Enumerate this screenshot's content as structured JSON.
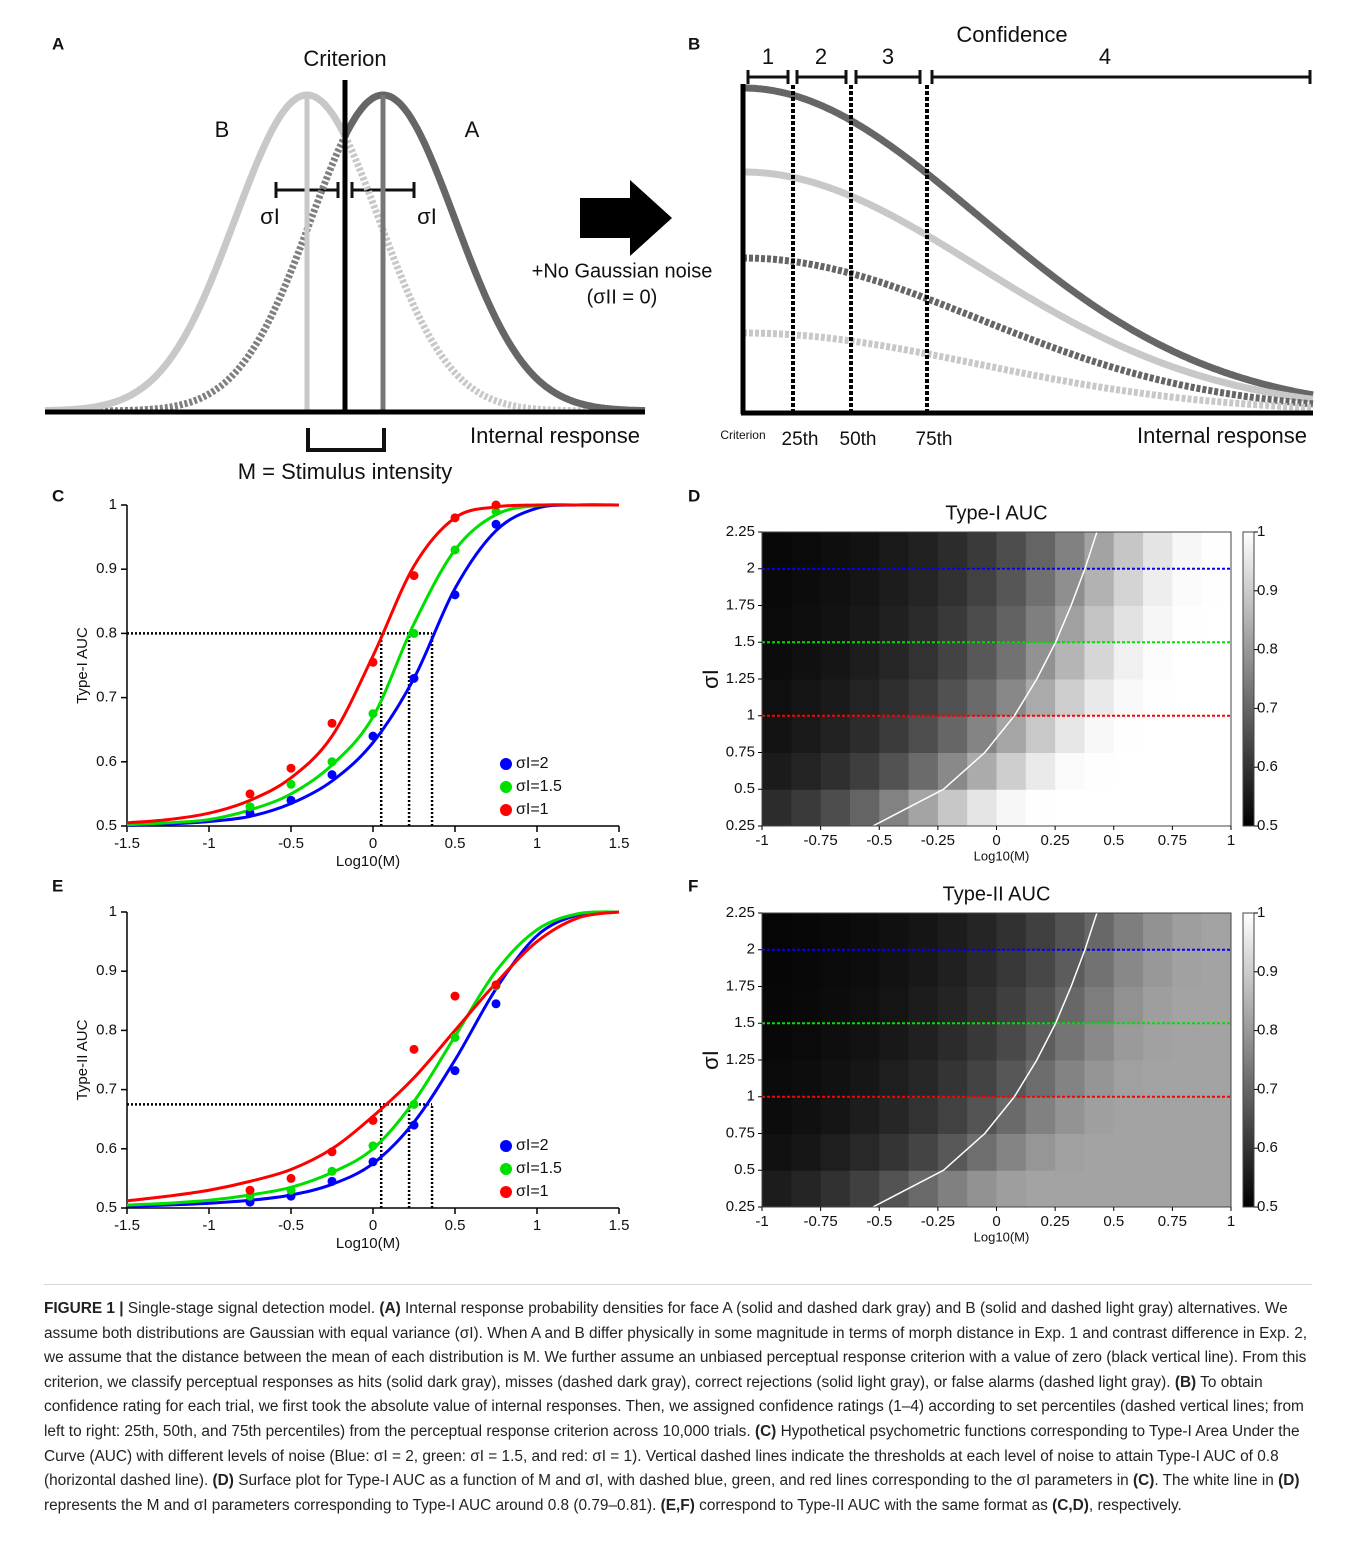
{
  "diagram_a": {
    "label": "A",
    "criterion": "Criterion",
    "dist_b": "B",
    "dist_a": "A",
    "sigma_left": "σI",
    "sigma_right": "σI",
    "axis": "Internal response",
    "m": "M = Stimulus intensity"
  },
  "arrow": {
    "line1": "+No Gaussian noise",
    "line2": "(σII = 0)"
  },
  "diagram_b": {
    "label": "B",
    "title": "Confidence",
    "levels": [
      "1",
      "2",
      "3",
      "4"
    ],
    "criterion": "Criterion",
    "percentiles": [
      "25th",
      "50th",
      "75th"
    ],
    "axis": "Internal response"
  },
  "chart_data": [
    {
      "type": "line",
      "label": "C",
      "xlabel": "Log10(M)",
      "ylabel": "Type-I AUC",
      "x": [
        -1.5,
        -1.25,
        -1,
        -0.75,
        -0.5,
        -0.25,
        0,
        0.25,
        0.5,
        0.75,
        1,
        1.25,
        1.5
      ],
      "point_x": [
        -0.75,
        -0.5,
        -0.25,
        0,
        0.25,
        0.5,
        0.75
      ],
      "series": [
        {
          "name": "σI=2",
          "color": "#0000ff",
          "values": [
            0.501,
            0.503,
            0.507,
            0.515,
            0.535,
            0.57,
            0.63,
            0.73,
            0.87,
            0.96,
            0.995,
            1,
            1
          ],
          "points": [
            0.52,
            0.54,
            0.58,
            0.64,
            0.73,
            0.86,
            0.97
          ]
        },
        {
          "name": "σI=1.5",
          "color": "#00e000",
          "values": [
            0.502,
            0.505,
            0.51,
            0.525,
            0.55,
            0.595,
            0.67,
            0.815,
            0.93,
            0.985,
            0.999,
            1,
            1
          ],
          "points": [
            0.53,
            0.565,
            0.6,
            0.675,
            0.8,
            0.93,
            0.99
          ]
        },
        {
          "name": "σI=1",
          "color": "#ff0000",
          "values": [
            0.505,
            0.51,
            0.52,
            0.54,
            0.575,
            0.64,
            0.765,
            0.905,
            0.98,
            0.997,
            1,
            1,
            1
          ],
          "points": [
            0.55,
            0.59,
            0.66,
            0.755,
            0.89,
            0.98,
            1
          ]
        }
      ],
      "threshold": {
        "y": 0.8,
        "x": [
          0.05,
          0.22,
          0.36
        ]
      },
      "xlim": [
        -1.5,
        1.5
      ],
      "xticks": [
        -1.5,
        -1,
        -0.5,
        0,
        0.5,
        1,
        1.5
      ],
      "ylim": [
        0.5,
        1
      ],
      "yticks": [
        0.5,
        0.6,
        0.7,
        0.8,
        0.9,
        1
      ]
    },
    {
      "type": "heatmap",
      "label": "D",
      "title": "Type-I AUC",
      "xlabel": "Log10(M)",
      "ylabel": "σI",
      "x": [
        -0.9375,
        -0.8125,
        -0.6875,
        -0.5625,
        -0.4375,
        -0.3125,
        -0.1875,
        -0.0625,
        0.0625,
        0.1875,
        0.3125,
        0.4375,
        0.5625,
        0.6875,
        0.8125,
        0.9375
      ],
      "y": [
        0.375,
        0.625,
        0.875,
        1.125,
        1.375,
        1.625,
        1.875,
        2.125
      ],
      "values": [
        [
          0.586,
          0.614,
          0.651,
          0.697,
          0.755,
          0.821,
          0.89,
          0.949,
          0.985,
          0.998,
          1,
          1,
          1,
          1,
          1,
          1
        ],
        [
          0.552,
          0.569,
          0.592,
          0.622,
          0.66,
          0.709,
          0.769,
          0.836,
          0.904,
          0.959,
          0.99,
          0.999,
          1,
          1,
          1,
          1
        ],
        [
          0.537,
          0.549,
          0.566,
          0.587,
          0.616,
          0.653,
          0.7,
          0.758,
          0.824,
          0.893,
          0.951,
          0.987,
          0.998,
          1,
          1,
          1
        ],
        [
          0.529,
          0.539,
          0.551,
          0.568,
          0.591,
          0.62,
          0.658,
          0.707,
          0.766,
          0.834,
          0.902,
          0.957,
          0.989,
          0.999,
          1,
          1
        ],
        [
          0.524,
          0.532,
          0.542,
          0.556,
          0.575,
          0.599,
          0.631,
          0.672,
          0.724,
          0.786,
          0.854,
          0.92,
          0.97,
          0.994,
          1,
          1
        ],
        [
          0.52,
          0.527,
          0.536,
          0.547,
          0.563,
          0.584,
          0.611,
          0.647,
          0.692,
          0.749,
          0.814,
          0.883,
          0.944,
          0.983,
          0.998,
          1
        ],
        [
          0.518,
          0.523,
          0.531,
          0.541,
          0.555,
          0.573,
          0.597,
          0.628,
          0.669,
          0.719,
          0.781,
          0.849,
          0.916,
          0.967,
          0.993,
          0.999
        ],
        [
          0.515,
          0.52,
          0.527,
          0.536,
          0.549,
          0.564,
          0.586,
          0.613,
          0.65,
          0.696,
          0.753,
          0.819,
          0.888,
          0.947,
          0.985,
          0.998
        ]
      ],
      "contour": {
        "x": [
          -0.527,
          -0.226,
          -0.05,
          0.076,
          0.172,
          0.252,
          0.318,
          0.377,
          0.428
        ],
        "y": [
          0.25,
          0.5,
          0.75,
          1,
          1.25,
          1.5,
          1.75,
          2,
          2.25
        ]
      },
      "hlines": [
        {
          "value": 2,
          "color": "#0000ff"
        },
        {
          "value": 1.5,
          "color": "#00e000"
        },
        {
          "value": 1,
          "color": "#ff0000"
        }
      ],
      "xlim": [
        -1,
        1
      ],
      "xticks": [
        -1,
        -0.75,
        -0.5,
        -0.25,
        0,
        0.25,
        0.5,
        0.75,
        1
      ],
      "ylim": [
        0.25,
        2.25
      ],
      "yticks": [
        0.25,
        0.5,
        0.75,
        1,
        1.25,
        1.5,
        1.75,
        2,
        2.25
      ],
      "colorbar": {
        "lim": [
          0.5,
          1
        ],
        "ticks": [
          0.5,
          0.6,
          0.7,
          0.8,
          0.9,
          1
        ]
      }
    },
    {
      "type": "line",
      "label": "E",
      "xlabel": "Log10(M)",
      "ylabel": "Type-II AUC",
      "x": [
        -1.5,
        -1.25,
        -1,
        -0.75,
        -0.5,
        -0.25,
        0,
        0.25,
        0.5,
        0.75,
        1,
        1.25,
        1.5
      ],
      "point_x": [
        -0.75,
        -0.5,
        -0.25,
        0,
        0.25,
        0.5,
        0.75
      ],
      "series": [
        {
          "name": "σI=2",
          "color": "#0000ff",
          "values": [
            0.503,
            0.505,
            0.508,
            0.513,
            0.522,
            0.54,
            0.575,
            0.645,
            0.75,
            0.87,
            0.96,
            0.995,
            1
          ],
          "points": [
            0.51,
            0.52,
            0.545,
            0.578,
            0.64,
            0.732,
            0.845
          ]
        },
        {
          "name": "σI=1.5",
          "color": "#00e000",
          "values": [
            0.505,
            0.508,
            0.513,
            0.522,
            0.535,
            0.56,
            0.6,
            0.68,
            0.79,
            0.9,
            0.97,
            0.997,
            1
          ],
          "points": [
            0.52,
            0.53,
            0.562,
            0.605,
            0.675,
            0.788,
            0.875
          ]
        },
        {
          "name": "σI=1",
          "color": "#ff0000",
          "values": [
            0.512,
            0.52,
            0.53,
            0.545,
            0.565,
            0.6,
            0.655,
            0.72,
            0.8,
            0.88,
            0.95,
            0.99,
            1
          ],
          "points": [
            0.53,
            0.55,
            0.595,
            0.648,
            0.768,
            0.858,
            0.877
          ]
        }
      ],
      "threshold": {
        "y": 0.675,
        "x": [
          0.05,
          0.22,
          0.36
        ]
      },
      "xlim": [
        -1.5,
        1.5
      ],
      "xticks": [
        -1.5,
        -1,
        -0.5,
        0,
        0.5,
        1,
        1.5
      ],
      "ylim": [
        0.5,
        1
      ],
      "yticks": [
        0.5,
        0.6,
        0.7,
        0.8,
        0.9,
        1
      ]
    },
    {
      "type": "heatmap",
      "label": "F",
      "title": "Type-II AUC",
      "xlabel": "Log10(M)",
      "ylabel": "σI",
      "x": [
        -0.9375,
        -0.8125,
        -0.6875,
        -0.5625,
        -0.4375,
        -0.3125,
        -0.1875,
        -0.0625,
        0.0625,
        0.1875,
        0.3125,
        0.4375,
        0.5625,
        0.6875,
        0.8125,
        0.9375
      ],
      "y": [
        0.375,
        0.625,
        0.875,
        1.125,
        1.375,
        1.625,
        1.875,
        2.125
      ],
      "values": [
        [
          0.555,
          0.573,
          0.597,
          0.626,
          0.663,
          0.705,
          0.75,
          0.787,
          0.81,
          0.819,
          0.82,
          0.82,
          0.82,
          0.82,
          0.82,
          0.82
        ],
        [
          0.533,
          0.544,
          0.559,
          0.578,
          0.602,
          0.634,
          0.672,
          0.715,
          0.759,
          0.794,
          0.814,
          0.819,
          0.82,
          0.82,
          0.82,
          0.82
        ],
        [
          0.524,
          0.531,
          0.542,
          0.556,
          0.574,
          0.598,
          0.628,
          0.665,
          0.707,
          0.752,
          0.789,
          0.812,
          0.819,
          0.82,
          0.82,
          0.82
        ],
        [
          0.519,
          0.525,
          0.533,
          0.544,
          0.558,
          0.577,
          0.601,
          0.632,
          0.67,
          0.714,
          0.757,
          0.792,
          0.813,
          0.819,
          0.82,
          0.82
        ],
        [
          0.515,
          0.52,
          0.527,
          0.536,
          0.548,
          0.563,
          0.584,
          0.61,
          0.643,
          0.683,
          0.727,
          0.769,
          0.801,
          0.816,
          0.82,
          0.82
        ],
        [
          0.513,
          0.517,
          0.523,
          0.53,
          0.54,
          0.554,
          0.571,
          0.594,
          0.623,
          0.659,
          0.701,
          0.745,
          0.784,
          0.809,
          0.819,
          0.82
        ],
        [
          0.512,
          0.515,
          0.52,
          0.526,
          0.535,
          0.547,
          0.562,
          0.582,
          0.608,
          0.64,
          0.68,
          0.723,
          0.766,
          0.799,
          0.816,
          0.819
        ],
        [
          0.51,
          0.513,
          0.517,
          0.523,
          0.531,
          0.541,
          0.555,
          0.572,
          0.596,
          0.625,
          0.662,
          0.704,
          0.748,
          0.786,
          0.81,
          0.819
        ]
      ],
      "contour": {
        "x": [
          -0.527,
          -0.226,
          -0.05,
          0.076,
          0.172,
          0.252,
          0.318,
          0.377,
          0.428
        ],
        "y": [
          0.25,
          0.5,
          0.75,
          1,
          1.25,
          1.5,
          1.75,
          2,
          2.25
        ]
      },
      "hlines": [
        {
          "value": 2,
          "color": "#0000ff"
        },
        {
          "value": 1.5,
          "color": "#00e000"
        },
        {
          "value": 1,
          "color": "#ff0000"
        }
      ],
      "xlim": [
        -1,
        1
      ],
      "xticks": [
        -1,
        -0.75,
        -0.5,
        -0.25,
        0,
        0.25,
        0.5,
        0.75,
        1
      ],
      "ylim": [
        0.25,
        2.25
      ],
      "yticks": [
        0.25,
        0.5,
        0.75,
        1,
        1.25,
        1.5,
        1.75,
        2,
        2.25
      ],
      "colorbar": {
        "lim": [
          0.5,
          1
        ],
        "ticks": [
          0.5,
          0.6,
          0.7,
          0.8,
          0.9,
          1
        ]
      }
    }
  ],
  "caption": [
    {
      "bold": "FIGURE 1 |"
    },
    " Single-stage signal detection model. ",
    {
      "bold": "(A)"
    },
    " Internal response probability densities for face A (solid and dashed dark gray) and B (solid and dashed light gray) alternatives. We assume both distributions are Gaussian with equal variance (σI). When A and B differ physically in some magnitude in terms of morph distance in Exp. 1 and contrast difference in Exp. 2, we assume that the distance between the mean of each distribution is M. We further assume an unbiased perceptual response criterion with a value of zero (black vertical line). From this criterion, we classify perceptual responses as hits (solid dark gray), misses (dashed dark gray), correct rejections (solid light gray), or false alarms (dashed light gray). ",
    {
      "bold": "(B)"
    },
    " To obtain confidence rating for each trial, we first took the absolute value of internal responses. Then, we assigned confidence ratings (1–4) according to set percentiles (dashed vertical lines; from left to right: 25th, 50th, and 75th percentiles) from the perceptual response criterion across 10,000 trials. ",
    {
      "bold": "(C)"
    },
    " Hypothetical psychometric functions corresponding to Type-I Area Under the Curve (AUC) with different levels of noise (Blue: σI = 2, green: σI = 1.5, and red: σI = 1). Vertical dashed lines indicate the thresholds at each level of noise to attain Type-I AUC of 0.8 (horizontal dashed line). ",
    {
      "bold": "(D)"
    },
    " Surface plot for Type-I AUC as a function of M and σI, with dashed blue, green, and red lines corresponding to the σI parameters in ",
    {
      "bold": "(C)"
    },
    ". The white line in ",
    {
      "bold": "(D)"
    },
    " represents the M and σI parameters corresponding to Type-I AUC around 0.8 (0.79–0.81). ",
    {
      "bold": "(E,F)"
    },
    " correspond to Type-II AUC with the same format as ",
    {
      "bold": "(C,D)"
    },
    ", respectively."
  ]
}
